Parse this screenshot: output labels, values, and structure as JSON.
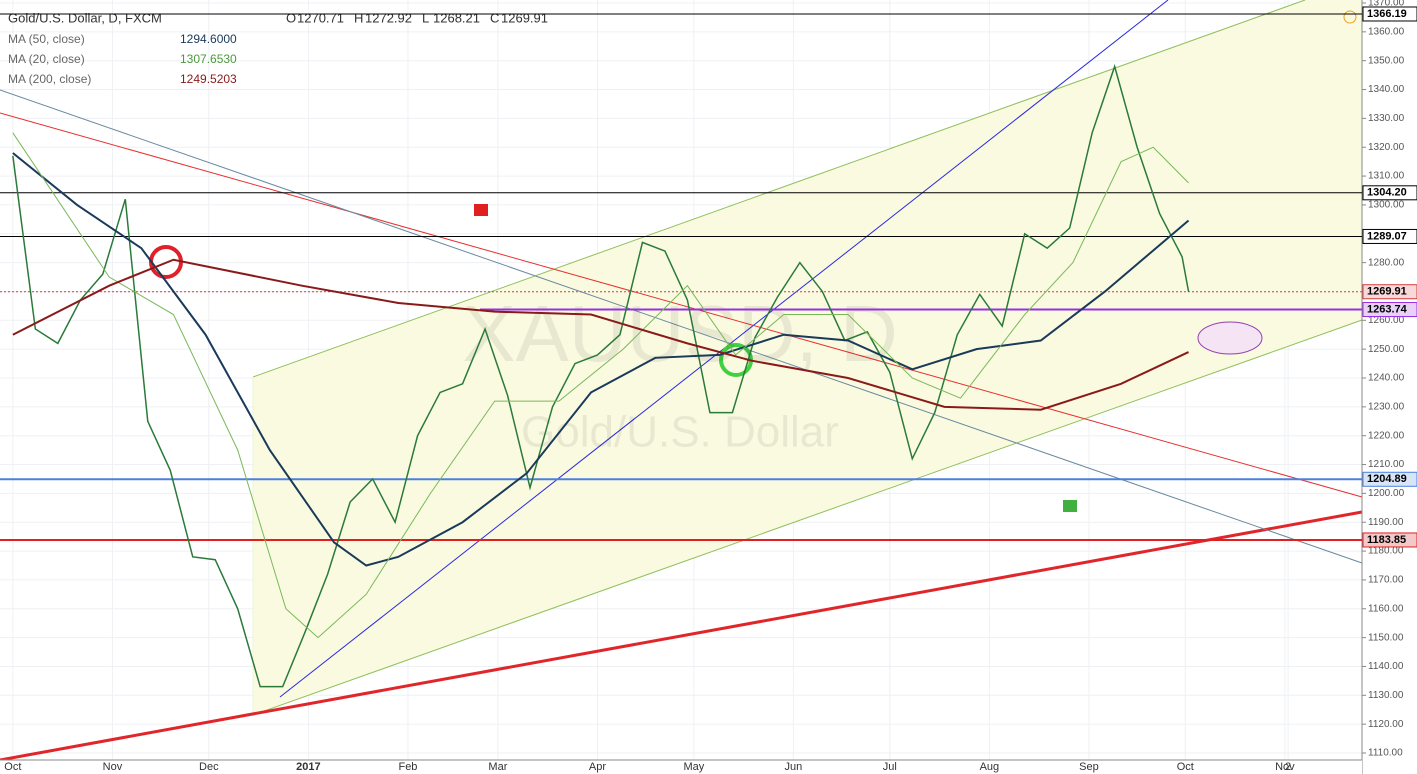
{
  "header": {
    "symbol": "Gold/U.S. Dollar, D, FXCM",
    "ohlc": [
      {
        "label": "O",
        "value": 1270.71
      },
      {
        "label": "H",
        "value": 1272.92
      },
      {
        "label": "L",
        "value": 1268.21
      },
      {
        "label": "C",
        "value": 1269.91
      }
    ],
    "indicators": [
      {
        "name": "MA (50, close)",
        "value": "1294.6000"
      },
      {
        "name": "MA (20, close)",
        "value": "1307.6530"
      },
      {
        "name": "MA (200, close)",
        "value": "1249.5203"
      }
    ]
  },
  "watermark": {
    "symbol": "XAUUSD, D",
    "name": "Gold/U.S. Dollar"
  },
  "chart_data": {
    "type": "line",
    "xlim": [
      -4,
      420
    ],
    "xticks": [
      {
        "value": 0,
        "label": "Oct"
      },
      {
        "value": 31,
        "label": "Nov"
      },
      {
        "value": 61,
        "label": "Dec"
      },
      {
        "value": 92,
        "label": "2017"
      },
      {
        "value": 123,
        "label": "Feb"
      },
      {
        "value": 151,
        "label": "Mar"
      },
      {
        "value": 182,
        "label": "Apr"
      },
      {
        "value": 212,
        "label": "May"
      },
      {
        "value": 243,
        "label": "Jun"
      },
      {
        "value": 273,
        "label": "Jul"
      },
      {
        "value": 304,
        "label": "Aug"
      },
      {
        "value": 335,
        "label": "Sep"
      },
      {
        "value": 365,
        "label": "Oct"
      },
      {
        "value": 396,
        "label": "Nov"
      },
      {
        "value": 397,
        "label": "2"
      }
    ],
    "ylim": [
      1110,
      1370
    ],
    "yticks": [
      {
        "value": 1110,
        "label": "1110.00"
      },
      {
        "value": 1120,
        "label": "1120.00"
      },
      {
        "value": 1130,
        "label": "1130.00"
      },
      {
        "value": 1140,
        "label": "1140.00"
      },
      {
        "value": 1150,
        "label": "1150.00"
      },
      {
        "value": 1160,
        "label": "1160.00"
      },
      {
        "value": 1170,
        "label": "1170.00"
      },
      {
        "value": 1180,
        "label": "1180.00"
      },
      {
        "value": 1190,
        "label": "1190.00"
      },
      {
        "value": 1200,
        "label": "1200.00"
      },
      {
        "value": 1210,
        "label": "1210.00"
      },
      {
        "value": 1220,
        "label": "1220.00"
      },
      {
        "value": 1230,
        "label": "1230.00"
      },
      {
        "value": 1240,
        "label": "1240.00"
      },
      {
        "value": 1250,
        "label": "1250.00"
      },
      {
        "value": 1260,
        "label": "1260.00"
      },
      {
        "value": 1270,
        "label": "1270.00"
      },
      {
        "value": 1280,
        "label": "1280.00"
      },
      {
        "value": 1290,
        "label": "1290.00"
      },
      {
        "value": 1300,
        "label": "1300.00"
      },
      {
        "value": 1310,
        "label": "1310.00"
      },
      {
        "value": 1320,
        "label": "1320.00"
      },
      {
        "value": 1330,
        "label": "1330.00"
      },
      {
        "value": 1340,
        "label": "1340.00"
      },
      {
        "value": 1350,
        "label": "1350.00"
      },
      {
        "value": 1360,
        "label": "1360.00"
      },
      {
        "value": 1370,
        "label": "1370.00"
      }
    ],
    "grid": true,
    "series": [
      {
        "color": "#2a7a3a",
        "width": 1.5,
        "x": [
          0,
          7,
          14,
          21,
          28,
          35,
          42,
          49,
          56,
          63,
          70,
          77,
          84,
          91,
          98,
          105,
          112,
          119,
          126,
          133,
          140,
          147,
          154,
          161,
          168,
          175,
          182,
          189,
          196,
          203,
          210,
          217,
          224,
          231,
          238,
          245,
          252,
          259,
          266,
          273,
          280,
          287,
          294,
          301,
          308,
          315,
          322,
          329,
          336,
          343,
          350,
          357,
          364,
          366
        ],
        "values": [
          1317,
          1257,
          1252,
          1267,
          1276,
          1302,
          1225,
          1208,
          1178,
          1177,
          1160,
          1133,
          1133,
          1152,
          1172,
          1197,
          1205,
          1190,
          1220,
          1235,
          1238,
          1257,
          1234,
          1202,
          1230,
          1245,
          1248,
          1255,
          1287,
          1284,
          1267,
          1228,
          1228,
          1254,
          1268,
          1280,
          1270,
          1253,
          1256,
          1242,
          1212,
          1228,
          1255,
          1269,
          1258,
          1290,
          1285,
          1292,
          1325,
          1348,
          1320,
          1297,
          1282,
          1270
        ]
      },
      {
        "color": "#1a3a5a",
        "width": 2,
        "x": [
          0,
          20,
          40,
          60,
          80,
          100,
          110,
          120,
          140,
          160,
          180,
          200,
          220,
          240,
          260,
          280,
          300,
          320,
          340,
          366
        ],
        "values": [
          1318,
          1300,
          1285,
          1255,
          1215,
          1183,
          1175,
          1178,
          1190,
          1207,
          1235,
          1247,
          1248,
          1255,
          1253,
          1243,
          1250,
          1253,
          1270,
          1294.6
        ]
      },
      {
        "color": "#7ab85a",
        "width": 1,
        "x": [
          0,
          30,
          50,
          70,
          85,
          95,
          110,
          130,
          150,
          170,
          190,
          210,
          225,
          240,
          260,
          280,
          295,
          315,
          330,
          345,
          355,
          366
        ],
        "values": [
          1325,
          1275,
          1262,
          1215,
          1160,
          1150,
          1165,
          1200,
          1232,
          1232,
          1250,
          1272,
          1248,
          1262,
          1262,
          1240,
          1233,
          1262,
          1280,
          1315,
          1320,
          1307.65
        ]
      },
      {
        "color": "#8a1a1a",
        "width": 2,
        "x": [
          0,
          30,
          50,
          90,
          120,
          150,
          180,
          210,
          230,
          260,
          290,
          320,
          345,
          366
        ],
        "values": [
          1255,
          1272,
          1281,
          1272,
          1266,
          1263,
          1262,
          1252,
          1246,
          1240,
          1230,
          1229,
          1238,
          1249
        ]
      }
    ],
    "levels": [
      {
        "value": 1366.19,
        "label": "1366.19",
        "color": "#000000",
        "bg": "#ffffff"
      },
      {
        "value": 1304.2,
        "label": "1304.20",
        "color": "#000000",
        "bg": "#ffffff"
      },
      {
        "value": 1289.07,
        "label": "1289.07",
        "color": "#000000",
        "bg": "#ffffff"
      },
      {
        "value": 1269.91,
        "label": "1269.91",
        "color": "#d04040",
        "bg": "#f8d8d8"
      },
      {
        "value": 1263.74,
        "label": "1263.74",
        "color": "#9a30e0",
        "bg": "#e8d0f8"
      },
      {
        "value": 1204.89,
        "label": "1204.89",
        "color": "#4a80e0",
        "bg": "#d8e4f8"
      },
      {
        "value": 1183.85,
        "label": "1183.85",
        "color": "#e02020",
        "bg": "#f4c8c8"
      }
    ]
  }
}
